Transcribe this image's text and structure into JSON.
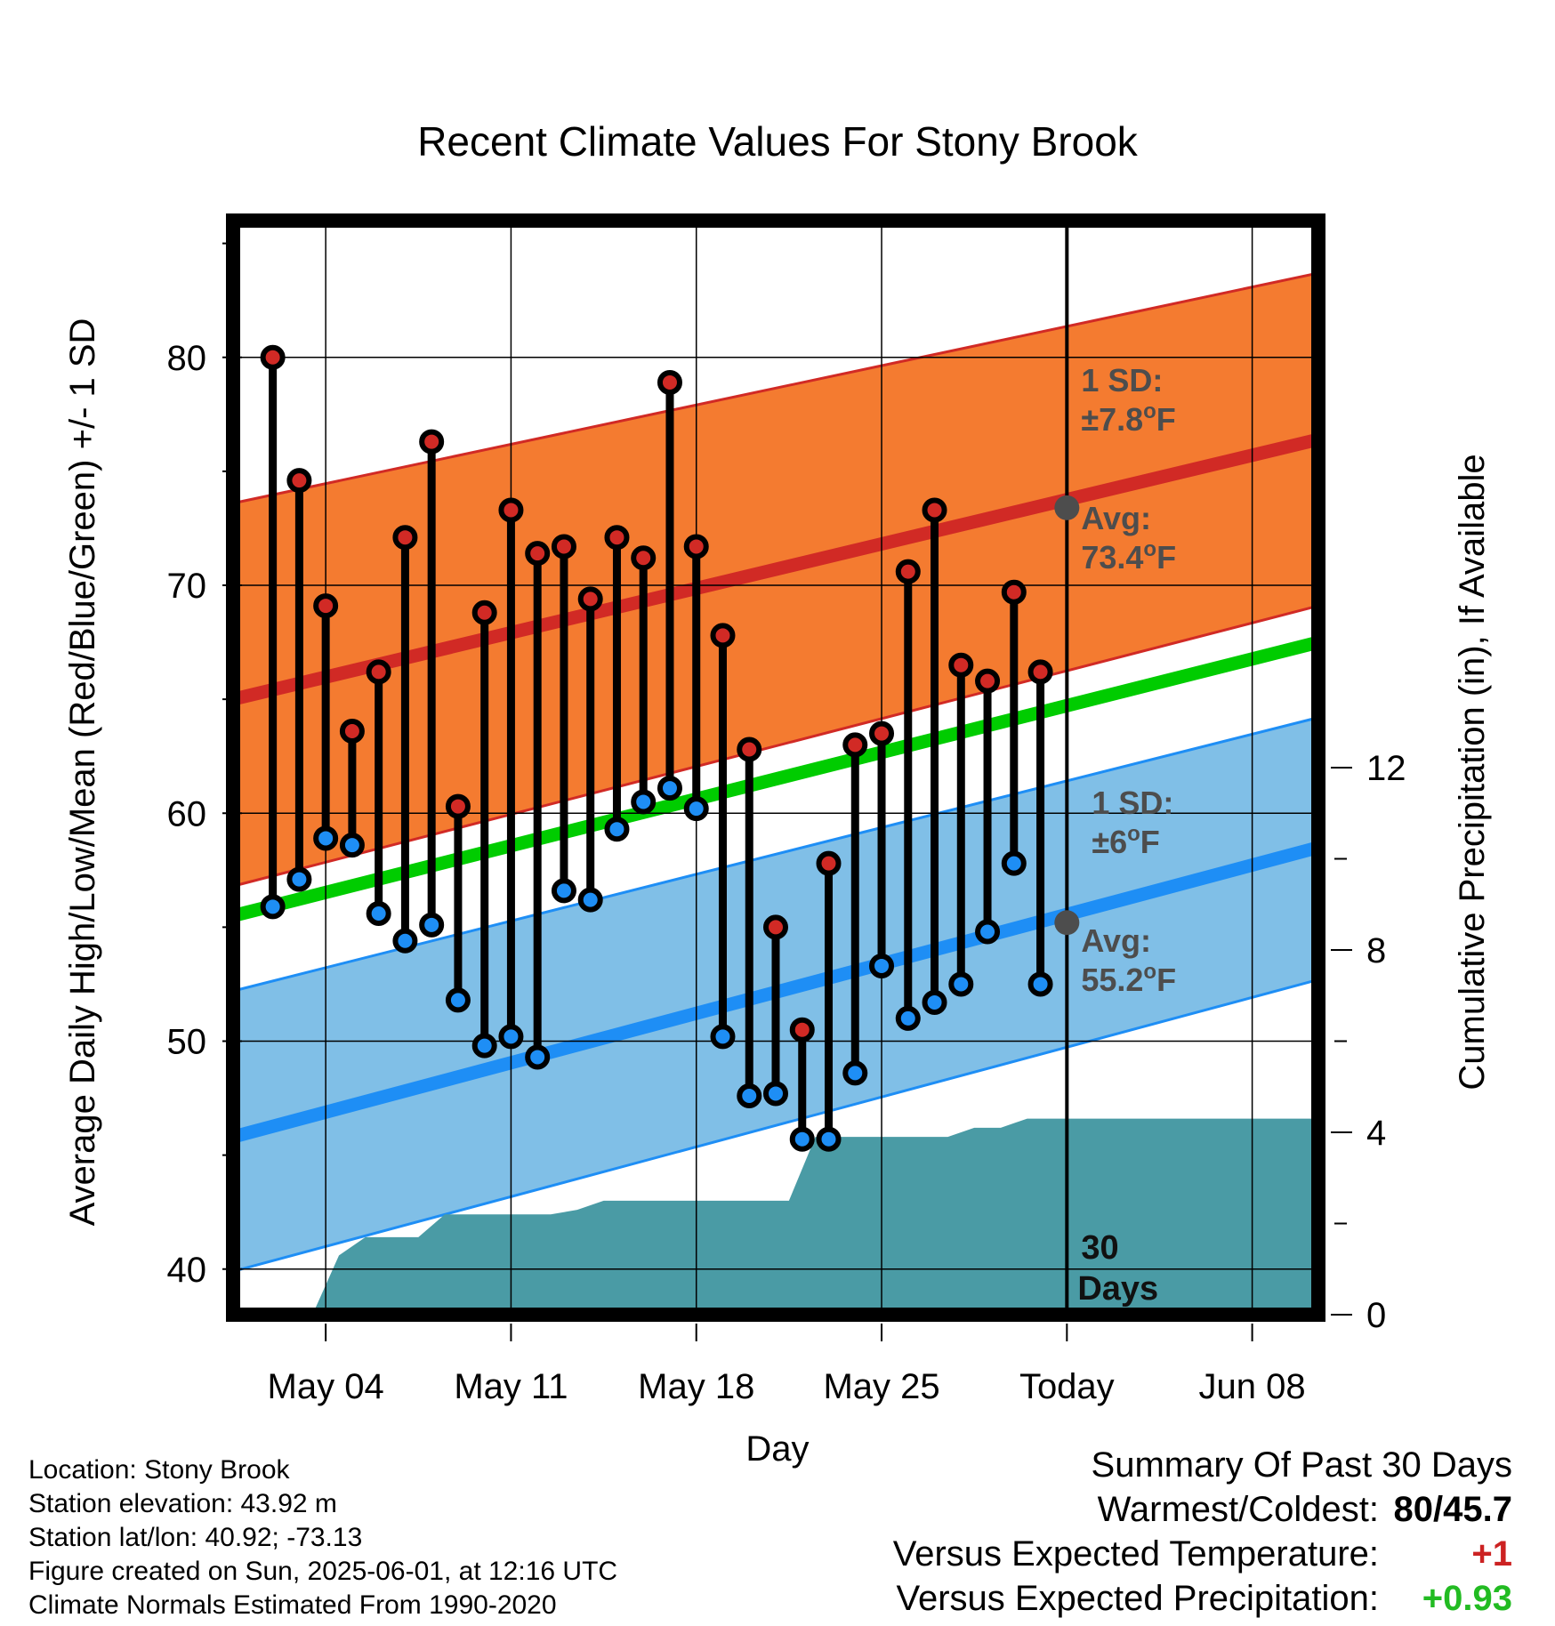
{
  "chart_data": {
    "type": "line",
    "title": "Recent Climate Values For Stony Brook",
    "xlabel": "Day",
    "ylabel": "Average Daily High/Low/Mean (Red/Blue/Green) +/- 1 SD",
    "y2label": "Cumulative Precipitation (in), If Available",
    "x_tick_labels": [
      "May 04",
      "May 11",
      "May 18",
      "May 25",
      "Today",
      "Jun 08"
    ],
    "x_tick_days": [
      3,
      10,
      17,
      24,
      31,
      38
    ],
    "x_range_days": [
      -0.5,
      40.5
    ],
    "ylim": [
      38,
      86
    ],
    "y_ticks": [
      40,
      50,
      60,
      70,
      80
    ],
    "y2lim": [
      0,
      24
    ],
    "y2_ticks": [
      0,
      4,
      8,
      12
    ],
    "grid": true,
    "today_day": 31,
    "days_label": "30\nDays",
    "observed": {
      "days": [
        1,
        2,
        3,
        4,
        5,
        6,
        7,
        8,
        9,
        10,
        11,
        12,
        13,
        14,
        15,
        16,
        17,
        18,
        19,
        20,
        21,
        22,
        23,
        24,
        25,
        26,
        27,
        28,
        29,
        30
      ],
      "highs": [
        80.0,
        74.6,
        69.1,
        63.6,
        66.2,
        72.1,
        76.3,
        60.3,
        68.8,
        73.3,
        71.4,
        71.7,
        69.4,
        72.1,
        71.2,
        78.9,
        71.7,
        67.8,
        62.8,
        55.0,
        50.5,
        57.8,
        63.0,
        63.5,
        70.6,
        73.3,
        66.5,
        65.8,
        69.7,
        66.2
      ],
      "lows": [
        55.9,
        57.1,
        58.9,
        58.6,
        55.6,
        54.4,
        55.1,
        51.8,
        49.8,
        50.2,
        49.3,
        56.6,
        56.2,
        59.3,
        60.5,
        61.1,
        60.2,
        50.2,
        47.6,
        47.7,
        45.7,
        45.7,
        48.6,
        53.3,
        51.0,
        51.7,
        52.5,
        54.8,
        57.8,
        52.5
      ]
    },
    "normals": {
      "days": [
        -0.5,
        40.5
      ],
      "mean_high": [
        65.0,
        76.4
      ],
      "high_plus_sd": [
        73.6,
        83.7
      ],
      "high_minus_sd": [
        56.8,
        69.1
      ],
      "mean": [
        55.5,
        67.5
      ],
      "mean_low": [
        45.8,
        58.5
      ],
      "low_plus_sd": [
        52.2,
        64.2
      ],
      "low_minus_sd": [
        39.9,
        52.7
      ]
    },
    "precip": {
      "days": [
        -0.5,
        2.5,
        3.5,
        4.5,
        6.5,
        7.5,
        8.5,
        11.5,
        12.5,
        13.5,
        20.5,
        21.5,
        23.5,
        26.5,
        27.5,
        28.5,
        29.5,
        40.5
      ],
      "cumulative": [
        0,
        0,
        1.3,
        1.7,
        1.7,
        2.2,
        2.2,
        2.2,
        2.3,
        2.5,
        2.5,
        3.9,
        3.9,
        3.9,
        4.1,
        4.1,
        4.3,
        4.3
      ]
    },
    "today_marks": {
      "avg_high": 73.4,
      "avg_low": 55.2
    },
    "annotations": {
      "high_sd": [
        "1 SD:",
        "±7.8",
        "o",
        "F"
      ],
      "high_avg": [
        "Avg:",
        "73.4",
        "o",
        "F"
      ],
      "low_sd": [
        "1 SD:",
        "±6",
        "o",
        "F"
      ],
      "low_avg": [
        "Avg:",
        "55.2",
        "o",
        "F"
      ]
    },
    "colors": {
      "high_band": "#f47b30",
      "high_line": "#d12a25",
      "low_band": "#80bfe7",
      "low_line": "#1e8ef5",
      "mean_line": "#00cc00",
      "precip_fill": "#4a9ba5",
      "marker_annotation": "#4d4d4d",
      "vs_temp": "#cc2222",
      "vs_precip": "#22bb22"
    }
  },
  "info": {
    "location": "Location: Stony Brook",
    "elevation": "Station elevation: 43.92 m",
    "latlon": "Station lat/lon: 40.92; -73.13",
    "created": "Figure created on Sun, 2025-06-01, at 12:16 UTC",
    "normals": "Climate Normals Estimated From 1990-2020"
  },
  "summary": {
    "heading": "Summary Of Past 30 Days",
    "warmest_label": "Warmest/Coldest:",
    "warmest_value": "80/45.7",
    "temp_label": "Versus Expected Temperature:",
    "temp_value": "+1",
    "precip_label": "Versus Expected Precipitation:",
    "precip_value": "+0.93"
  }
}
